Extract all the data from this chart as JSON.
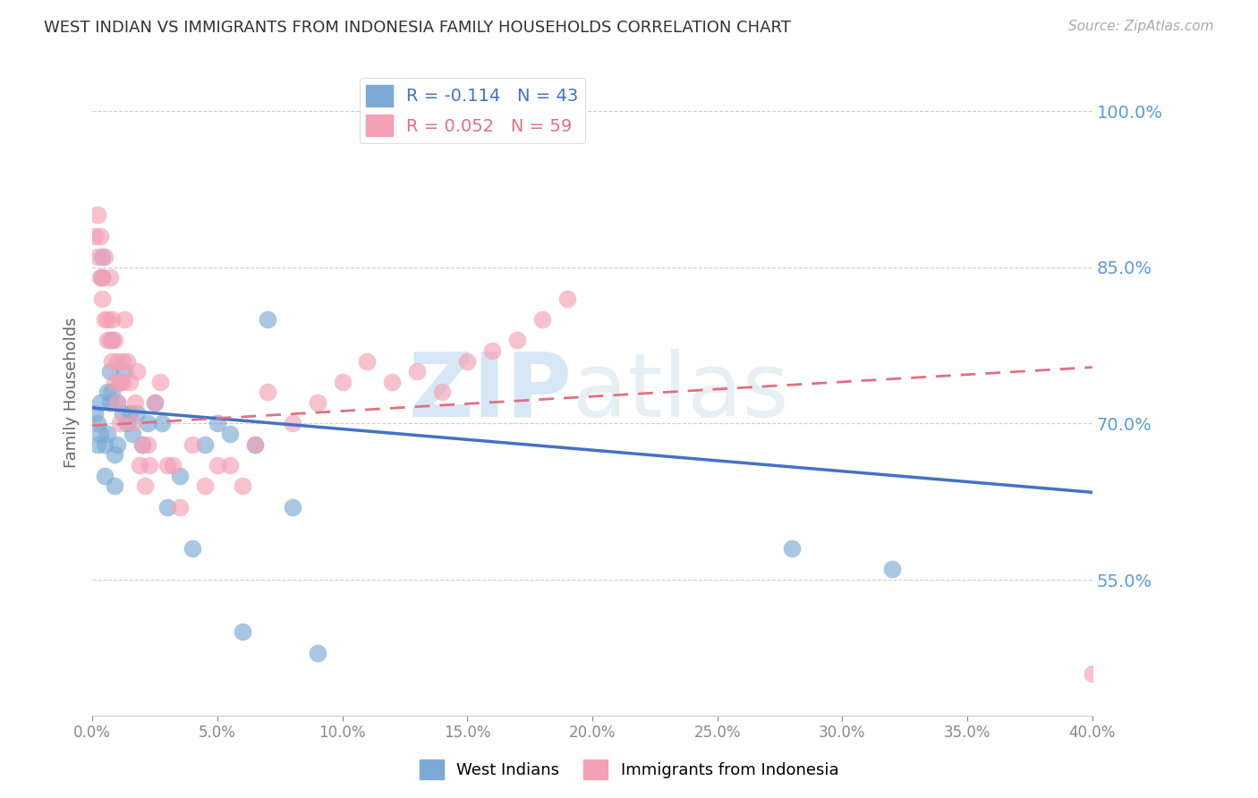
{
  "title": "WEST INDIAN VS IMMIGRANTS FROM INDONESIA FAMILY HOUSEHOLDS CORRELATION CHART",
  "source": "Source: ZipAtlas.com",
  "ylabel": "Family Households",
  "xlim": [
    0.0,
    0.4
  ],
  "ylim": [
    0.42,
    1.04
  ],
  "yticks": [
    0.55,
    0.7,
    0.85,
    1.0
  ],
  "ytick_labels": [
    "55.0%",
    "70.0%",
    "85.0%",
    "100.0%"
  ],
  "xticks": [
    0.0,
    0.05,
    0.1,
    0.15,
    0.2,
    0.25,
    0.3,
    0.35,
    0.4
  ],
  "xtick_labels": [
    "0.0%",
    "5.0%",
    "10.0%",
    "15.0%",
    "20.0%",
    "25.0%",
    "30.0%",
    "35.0%",
    "40.0%"
  ],
  "legend_blue_r": "R = -0.114",
  "legend_blue_n": "N = 43",
  "legend_pink_r": "R = 0.052",
  "legend_pink_n": "N = 59",
  "legend_label_blue": "West Indians",
  "legend_label_pink": "Immigrants from Indonesia",
  "blue_color": "#7aaad4",
  "pink_color": "#f4a0b5",
  "blue_line_color": "#4472c4",
  "pink_line_color": "#e07080",
  "watermark_zip": "ZIP",
  "watermark_atlas": "atlas",
  "blue_scatter_x": [
    0.001,
    0.002,
    0.002,
    0.003,
    0.003,
    0.004,
    0.004,
    0.005,
    0.005,
    0.006,
    0.006,
    0.007,
    0.007,
    0.008,
    0.008,
    0.009,
    0.009,
    0.01,
    0.01,
    0.011,
    0.012,
    0.013,
    0.014,
    0.015,
    0.016,
    0.018,
    0.02,
    0.022,
    0.025,
    0.028,
    0.03,
    0.035,
    0.04,
    0.045,
    0.05,
    0.055,
    0.06,
    0.065,
    0.07,
    0.08,
    0.09,
    0.28,
    0.32
  ],
  "blue_scatter_y": [
    0.71,
    0.7,
    0.68,
    0.72,
    0.69,
    0.86,
    0.84,
    0.68,
    0.65,
    0.73,
    0.69,
    0.75,
    0.72,
    0.78,
    0.73,
    0.67,
    0.64,
    0.72,
    0.68,
    0.74,
    0.71,
    0.75,
    0.7,
    0.71,
    0.69,
    0.71,
    0.68,
    0.7,
    0.72,
    0.7,
    0.62,
    0.65,
    0.58,
    0.68,
    0.7,
    0.69,
    0.5,
    0.68,
    0.8,
    0.62,
    0.48,
    0.58,
    0.56
  ],
  "pink_scatter_x": [
    0.001,
    0.002,
    0.002,
    0.003,
    0.003,
    0.004,
    0.004,
    0.005,
    0.005,
    0.006,
    0.006,
    0.007,
    0.007,
    0.008,
    0.008,
    0.009,
    0.009,
    0.01,
    0.01,
    0.011,
    0.011,
    0.012,
    0.012,
    0.013,
    0.014,
    0.015,
    0.016,
    0.017,
    0.018,
    0.019,
    0.02,
    0.021,
    0.022,
    0.023,
    0.025,
    0.027,
    0.03,
    0.032,
    0.035,
    0.04,
    0.045,
    0.05,
    0.055,
    0.06,
    0.065,
    0.07,
    0.08,
    0.09,
    0.1,
    0.11,
    0.12,
    0.13,
    0.14,
    0.15,
    0.16,
    0.17,
    0.18,
    0.19,
    0.4
  ],
  "pink_scatter_y": [
    0.88,
    0.9,
    0.86,
    0.88,
    0.84,
    0.84,
    0.82,
    0.8,
    0.86,
    0.78,
    0.8,
    0.84,
    0.78,
    0.76,
    0.8,
    0.74,
    0.78,
    0.72,
    0.76,
    0.74,
    0.7,
    0.74,
    0.76,
    0.8,
    0.76,
    0.74,
    0.7,
    0.72,
    0.75,
    0.66,
    0.68,
    0.64,
    0.68,
    0.66,
    0.72,
    0.74,
    0.66,
    0.66,
    0.62,
    0.68,
    0.64,
    0.66,
    0.66,
    0.64,
    0.68,
    0.73,
    0.7,
    0.72,
    0.74,
    0.76,
    0.74,
    0.75,
    0.73,
    0.76,
    0.77,
    0.78,
    0.8,
    0.82,
    0.46
  ],
  "blue_line_x0": 0.0,
  "blue_line_x1": 0.4,
  "blue_line_y0": 0.715,
  "blue_line_y1": 0.634,
  "pink_line_x0": 0.0,
  "pink_line_x1": 0.4,
  "pink_line_y0": 0.698,
  "pink_line_y1": 0.754
}
